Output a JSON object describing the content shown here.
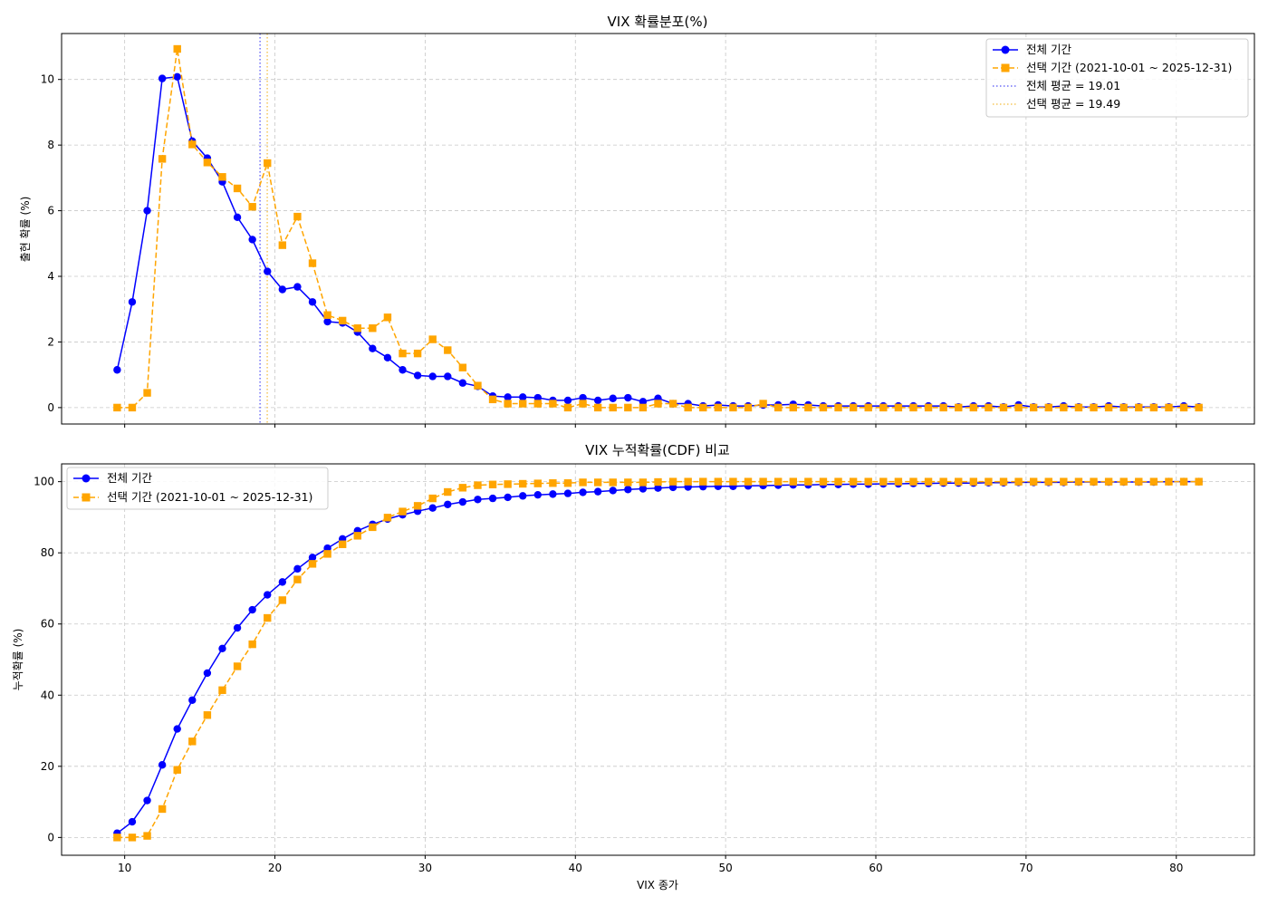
{
  "colors": {
    "all": "#0000ff",
    "selected": "#ffa500",
    "all_mean": "#6f6ff7",
    "selected_mean": "#f5c75c",
    "grid": "#c7c7c7"
  },
  "shared": {
    "xlabel": "VIX 종가",
    "xlim": [
      5.8,
      85.2
    ],
    "xticks": [
      10,
      20,
      30,
      40,
      50,
      60,
      70,
      80
    ]
  },
  "chart_data": [
    {
      "type": "line",
      "title": "VIX 확률분포(%)",
      "xlabel": "",
      "ylabel": "출현 확률 (%)",
      "ylim": [
        -0.5,
        11.4
      ],
      "yticks": [
        0,
        2,
        4,
        6,
        8,
        10
      ],
      "grid": true,
      "legend_position": "top-right",
      "x": [
        9.5,
        10.5,
        11.5,
        12.5,
        13.5,
        14.5,
        15.5,
        16.5,
        17.5,
        18.5,
        19.5,
        20.5,
        21.5,
        22.5,
        23.5,
        24.5,
        25.5,
        26.5,
        27.5,
        28.5,
        29.5,
        30.5,
        31.5,
        32.5,
        33.5,
        34.5,
        35.5,
        36.5,
        37.5,
        38.5,
        39.5,
        40.5,
        41.5,
        42.5,
        43.5,
        44.5,
        45.5,
        46.5,
        47.5,
        48.5,
        49.5,
        50.5,
        51.5,
        52.5,
        53.5,
        54.5,
        55.5,
        56.5,
        57.5,
        58.5,
        59.5,
        60.5,
        61.5,
        62.5,
        63.5,
        64.5,
        65.5,
        66.5,
        67.5,
        68.5,
        69.5,
        70.5,
        71.5,
        72.5,
        73.5,
        74.5,
        75.5,
        76.5,
        77.5,
        78.5,
        79.5,
        80.5,
        81.5
      ],
      "series": [
        {
          "name": "전체 기간",
          "style": "solid",
          "marker": "circle",
          "values": [
            1.15,
            3.22,
            6.0,
            10.03,
            10.08,
            8.12,
            7.6,
            6.88,
            5.8,
            5.12,
            4.15,
            3.6,
            3.68,
            3.22,
            2.62,
            2.58,
            2.3,
            1.8,
            1.52,
            1.15,
            0.98,
            0.95,
            0.95,
            0.75,
            0.65,
            0.35,
            0.32,
            0.32,
            0.3,
            0.22,
            0.22,
            0.3,
            0.22,
            0.28,
            0.3,
            0.18,
            0.28,
            0.12,
            0.12,
            0.05,
            0.08,
            0.05,
            0.05,
            0.08,
            0.08,
            0.1,
            0.08,
            0.05,
            0.05,
            0.05,
            0.05,
            0.05,
            0.05,
            0.05,
            0.05,
            0.05,
            0.02,
            0.05,
            0.05,
            0.02,
            0.08,
            0.02,
            0.02,
            0.05,
            0.02,
            0.02,
            0.05,
            0.02,
            0.02,
            0.02,
            0.02,
            0.05,
            0.02
          ]
        },
        {
          "name": "선택 기간 (2021-10-01 ~ 2025-12-31)",
          "style": "dashed",
          "marker": "square",
          "values": [
            0.0,
            0.0,
            0.45,
            7.58,
            10.93,
            8.02,
            7.47,
            7.03,
            6.68,
            6.12,
            7.45,
            4.95,
            5.82,
            4.4,
            2.82,
            2.65,
            2.42,
            2.42,
            2.75,
            1.65,
            1.65,
            2.08,
            1.75,
            1.22,
            0.67,
            0.25,
            0.12,
            0.12,
            0.12,
            0.12,
            0.0,
            0.12,
            0.0,
            0.0,
            0.0,
            0.0,
            0.12,
            0.12,
            0.0,
            0.0,
            0.0,
            0.0,
            0.0,
            0.12,
            0.0,
            0.0,
            0.0,
            0.0,
            0.0,
            0.0,
            0.0,
            0.0,
            0.0,
            0.0,
            0.0,
            0.0,
            0.0,
            0.0,
            0.0,
            0.0,
            0.0,
            0.0,
            0.0,
            0.0,
            0.0,
            0.0,
            0.0,
            0.0,
            0.0,
            0.0,
            0.0,
            0.0,
            0.0
          ]
        }
      ],
      "reference_lines": [
        {
          "name": "전체 평균 = 19.01",
          "x": 19.01,
          "style": "dotted",
          "color_key": "all_mean"
        },
        {
          "name": "선택 평균 = 19.49",
          "x": 19.49,
          "style": "dotted",
          "color_key": "selected_mean"
        }
      ]
    },
    {
      "type": "line",
      "title": "VIX 누적확률(CDF) 비교",
      "xlabel": "VIX 종가",
      "ylabel": "누적확률 (%)",
      "ylim": [
        -5,
        105
      ],
      "yticks": [
        0,
        20,
        40,
        60,
        80,
        100
      ],
      "grid": true,
      "legend_position": "top-left",
      "x": [
        9.5,
        10.5,
        11.5,
        12.5,
        13.5,
        14.5,
        15.5,
        16.5,
        17.5,
        18.5,
        19.5,
        20.5,
        21.5,
        22.5,
        23.5,
        24.5,
        25.5,
        26.5,
        27.5,
        28.5,
        29.5,
        30.5,
        31.5,
        32.5,
        33.5,
        34.5,
        35.5,
        36.5,
        37.5,
        38.5,
        39.5,
        40.5,
        41.5,
        42.5,
        43.5,
        44.5,
        45.5,
        46.5,
        47.5,
        48.5,
        49.5,
        50.5,
        51.5,
        52.5,
        53.5,
        54.5,
        55.5,
        56.5,
        57.5,
        58.5,
        59.5,
        60.5,
        61.5,
        62.5,
        63.5,
        64.5,
        65.5,
        66.5,
        67.5,
        68.5,
        69.5,
        70.5,
        71.5,
        72.5,
        73.5,
        74.5,
        75.5,
        76.5,
        77.5,
        78.5,
        79.5,
        80.5,
        81.5
      ],
      "series": [
        {
          "name": "전체 기간",
          "style": "solid",
          "marker": "circle",
          "values": [
            1.2,
            4.4,
            10.4,
            20.4,
            30.5,
            38.6,
            46.2,
            53.1,
            58.9,
            64.0,
            68.2,
            71.8,
            75.5,
            78.7,
            81.3,
            83.9,
            86.2,
            88.0,
            89.5,
            90.7,
            91.7,
            92.6,
            93.6,
            94.3,
            95.0,
            95.3,
            95.6,
            96.0,
            96.3,
            96.5,
            96.7,
            97.0,
            97.2,
            97.5,
            97.8,
            98.0,
            98.2,
            98.4,
            98.5,
            98.6,
            98.7,
            98.7,
            98.8,
            98.9,
            99.0,
            99.1,
            99.1,
            99.2,
            99.2,
            99.3,
            99.3,
            99.4,
            99.4,
            99.5,
            99.5,
            99.6,
            99.6,
            99.6,
            99.7,
            99.7,
            99.8,
            99.8,
            99.8,
            99.8,
            99.9,
            99.9,
            99.9,
            99.9,
            99.9,
            99.9,
            100.0,
            100.0,
            100.0
          ]
        },
        {
          "name": "선택 기간 (2021-10-01 ~ 2025-12-31)",
          "style": "dashed",
          "marker": "square",
          "values": [
            0.0,
            0.0,
            0.45,
            8.0,
            19.0,
            27.0,
            34.4,
            41.4,
            48.1,
            54.3,
            61.7,
            66.7,
            72.5,
            76.9,
            79.7,
            82.4,
            84.8,
            87.2,
            89.9,
            91.6,
            93.2,
            95.3,
            97.1,
            98.3,
            99.0,
            99.2,
            99.3,
            99.4,
            99.5,
            99.6,
            99.6,
            99.8,
            99.8,
            99.8,
            99.8,
            99.8,
            99.9,
            100.0,
            100.0,
            100.0,
            100.0,
            100.0,
            100.0,
            100.0,
            100.0,
            100.0,
            100.0,
            100.0,
            100.0,
            100.0,
            100.0,
            100.0,
            100.0,
            100.0,
            100.0,
            100.0,
            100.0,
            100.0,
            100.0,
            100.0,
            100.0,
            100.0,
            100.0,
            100.0,
            100.0,
            100.0,
            100.0,
            100.0,
            100.0,
            100.0,
            100.0,
            100.0,
            100.0
          ]
        }
      ]
    }
  ]
}
